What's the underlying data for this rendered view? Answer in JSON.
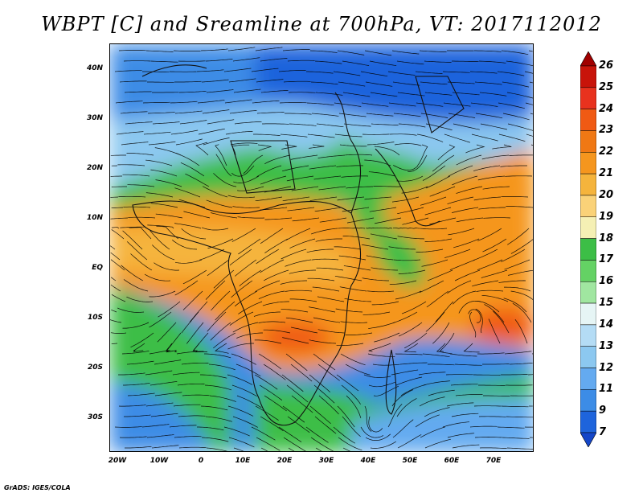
{
  "title": "WBPT [C] and Sreamline at 700hPa, VT: 2017112012",
  "credit": "GrADS: IGES/COLA",
  "map": {
    "lat_labels": [
      "40N",
      "30N",
      "20N",
      "10N",
      "EQ",
      "10S",
      "20S",
      "30S"
    ],
    "lon_labels": [
      "20W",
      "10W",
      "0",
      "10E",
      "20E",
      "30E",
      "40E",
      "50E",
      "60E",
      "70E"
    ]
  },
  "colorbar": {
    "levels": [
      "26",
      "25",
      "24",
      "23",
      "22",
      "21",
      "20",
      "19",
      "18",
      "17",
      "16",
      "15",
      "14",
      "13",
      "12",
      "11",
      "9",
      "7"
    ],
    "colors": [
      "#a00000",
      "#c8140a",
      "#e8321e",
      "#f05a14",
      "#f07814",
      "#f5961e",
      "#f5b43c",
      "#fad278",
      "#f5f0b4",
      "#3cbe46",
      "#64d264",
      "#a0e6a0",
      "#e6f5f5",
      "#b4dcf5",
      "#8cc8f0",
      "#64aaf0",
      "#3c8ce6",
      "#1e64dc",
      "#1446c8"
    ]
  }
}
